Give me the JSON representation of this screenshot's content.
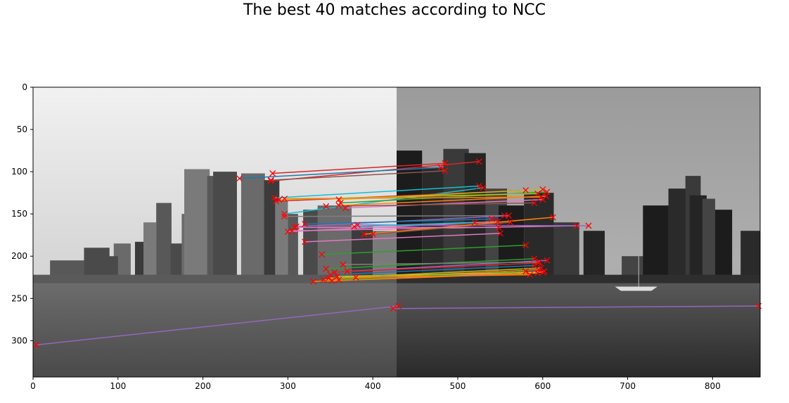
{
  "figure": {
    "title": "The best 40 matches according to NCC"
  },
  "chart_data": {
    "type": "scatter",
    "title": "The best 40 matches according to NCC",
    "xlabel": "",
    "ylabel": "",
    "xlim": [
      0,
      856
    ],
    "ylim": [
      343,
      0
    ],
    "x_ticks": [
      0,
      100,
      200,
      300,
      400,
      500,
      600,
      700,
      800
    ],
    "y_ticks": [
      0,
      50,
      100,
      150,
      200,
      250,
      300
    ],
    "grid": false,
    "background": "two grayscale photographs of a city skyline placed side by side (left image x 0–428, right image x 428–856)",
    "marker": "x",
    "marker_color": "#ff0000",
    "matches": [
      {
        "x1": 282,
        "y1": 102,
        "x2": 485,
        "y2": 90,
        "color": "#d62728"
      },
      {
        "x1": 280,
        "y1": 111,
        "x2": 525,
        "y2": 88,
        "color": "#d62728"
      },
      {
        "x1": 243,
        "y1": 108,
        "x2": 480,
        "y2": 95,
        "color": "#1f77b4"
      },
      {
        "x1": 280,
        "y1": 110,
        "x2": 485,
        "y2": 99,
        "color": "#8c564b"
      },
      {
        "x1": 284,
        "y1": 131,
        "x2": 525,
        "y2": 117,
        "color": "#17becf"
      },
      {
        "x1": 296,
        "y1": 150,
        "x2": 530,
        "y2": 119,
        "color": "#17becf"
      },
      {
        "x1": 286,
        "y1": 135,
        "x2": 580,
        "y2": 122,
        "color": "#d62728"
      },
      {
        "x1": 360,
        "y1": 133,
        "x2": 600,
        "y2": 121,
        "color": "#bcbd22"
      },
      {
        "x1": 362,
        "y1": 137,
        "x2": 605,
        "y2": 124,
        "color": "#2ca02c"
      },
      {
        "x1": 360,
        "y1": 140,
        "x2": 604,
        "y2": 129,
        "color": "#ff7f0e"
      },
      {
        "x1": 368,
        "y1": 143,
        "x2": 600,
        "y2": 133,
        "color": "#e377c2"
      },
      {
        "x1": 345,
        "y1": 141,
        "x2": 590,
        "y2": 137,
        "color": "#8c564b"
      },
      {
        "x1": 296,
        "y1": 153,
        "x2": 555,
        "y2": 152,
        "color": "#7f7f7f"
      },
      {
        "x1": 310,
        "y1": 165,
        "x2": 560,
        "y2": 152,
        "color": "#9467bd"
      },
      {
        "x1": 320,
        "y1": 162,
        "x2": 540,
        "y2": 156,
        "color": "#1f77b4"
      },
      {
        "x1": 300,
        "y1": 171,
        "x2": 547,
        "y2": 159,
        "color": "#e377c2"
      },
      {
        "x1": 305,
        "y1": 170,
        "x2": 640,
        "y2": 164,
        "color": "#e377c2"
      },
      {
        "x1": 382,
        "y1": 163,
        "x2": 654,
        "y2": 164,
        "color": "#9467bd"
      },
      {
        "x1": 390,
        "y1": 174,
        "x2": 612,
        "y2": 154,
        "color": "#ff7f0e"
      },
      {
        "x1": 320,
        "y1": 183,
        "x2": 550,
        "y2": 173,
        "color": "#e377c2"
      },
      {
        "x1": 340,
        "y1": 198,
        "x2": 580,
        "y2": 187,
        "color": "#2ca02c"
      },
      {
        "x1": 345,
        "y1": 215,
        "x2": 590,
        "y2": 203,
        "color": "#2ca02c"
      },
      {
        "x1": 370,
        "y1": 218,
        "x2": 605,
        "y2": 205,
        "color": "#9467bd"
      },
      {
        "x1": 355,
        "y1": 219,
        "x2": 595,
        "y2": 208,
        "color": "#d62728"
      },
      {
        "x1": 350,
        "y1": 222,
        "x2": 590,
        "y2": 211,
        "color": "#1f77b4"
      },
      {
        "x1": 348,
        "y1": 226,
        "x2": 598,
        "y2": 214,
        "color": "#bcbd22"
      },
      {
        "x1": 342,
        "y1": 228,
        "x2": 595,
        "y2": 216,
        "color": "#ff7f0e"
      },
      {
        "x1": 352,
        "y1": 229,
        "x2": 602,
        "y2": 218,
        "color": "#e377c2"
      },
      {
        "x1": 360,
        "y1": 228,
        "x2": 580,
        "y2": 218,
        "color": "#2ca02c"
      },
      {
        "x1": 400,
        "y1": 174,
        "x2": 562,
        "y2": 160,
        "color": "#8c564b"
      },
      {
        "x1": 378,
        "y1": 165,
        "x2": 520,
        "y2": 160,
        "color": "#17becf"
      },
      {
        "x1": 365,
        "y1": 210,
        "x2": 596,
        "y2": 207,
        "color": "#7f7f7f"
      },
      {
        "x1": 358,
        "y1": 224,
        "x2": 600,
        "y2": 219,
        "color": "#bcbd22"
      },
      {
        "x1": 380,
        "y1": 225,
        "x2": 585,
        "y2": 222,
        "color": "#ff7f0e"
      },
      {
        "x1": 4,
        "y1": 305,
        "x2": 430,
        "y2": 259,
        "color": "#9467bd"
      },
      {
        "x1": 424,
        "y1": 262,
        "x2": 854,
        "y2": 259,
        "color": "#9467bd"
      },
      {
        "x1": 290,
        "y1": 133,
        "x2": 594,
        "y2": 126,
        "color": "#bcbd22"
      },
      {
        "x1": 296,
        "y1": 132,
        "x2": 598,
        "y2": 130,
        "color": "#ff7f0e"
      },
      {
        "x1": 308,
        "y1": 166,
        "x2": 548,
        "y2": 166,
        "color": "#e377c2"
      },
      {
        "x1": 330,
        "y1": 230,
        "x2": 594,
        "y2": 220,
        "color": "#ff7f0e"
      }
    ]
  }
}
